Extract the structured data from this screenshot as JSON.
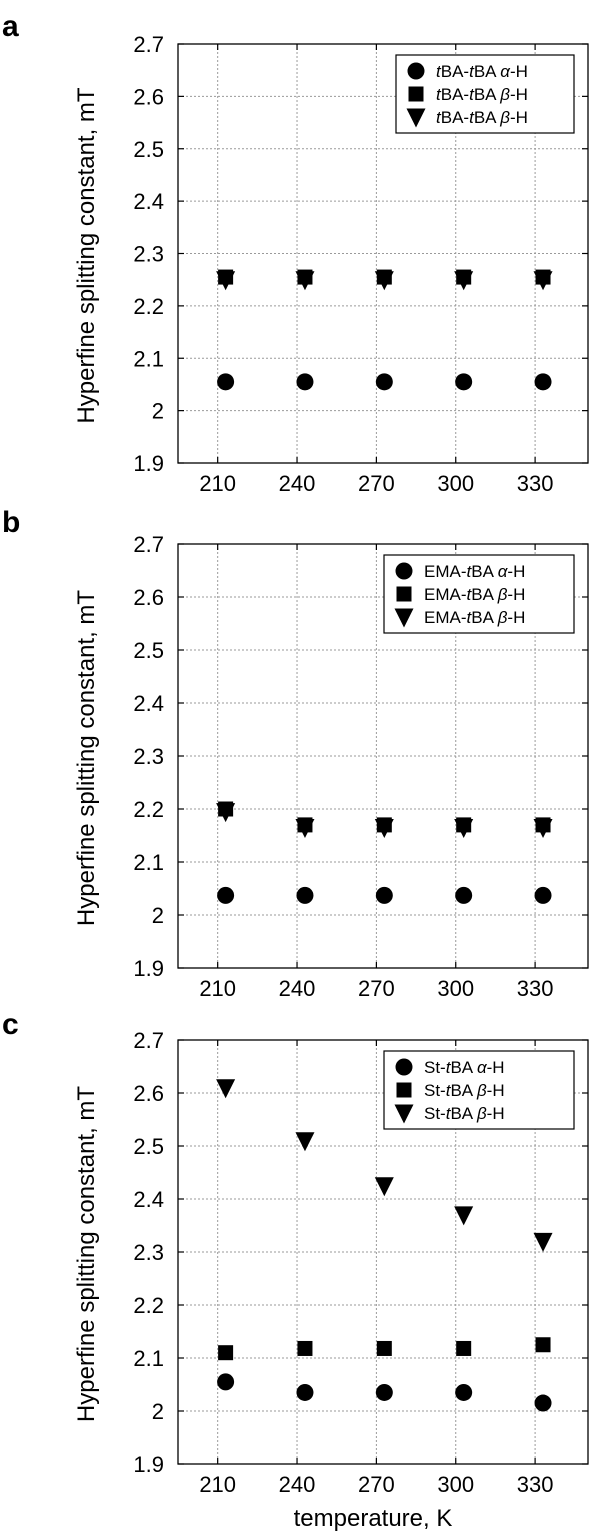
{
  "figure": {
    "x_label": "temperature, K"
  },
  "chart_data": [
    {
      "type": "scatter",
      "panel": "a",
      "title": "",
      "ylabel": "Hyperfine splitting constant, mT",
      "xlabel": "",
      "x": [
        213,
        243,
        273,
        303,
        333
      ],
      "xticks": [
        210,
        240,
        270,
        300,
        330
      ],
      "xlim": [
        195,
        350
      ],
      "yticks": [
        "1.9",
        "2",
        "2.1",
        "2.2",
        "2.3",
        "2.4",
        "2.5",
        "2.6",
        "2.7"
      ],
      "ylim": [
        1.9,
        2.7
      ],
      "grid": true,
      "legend_position": "top-right",
      "series": [
        {
          "name": "tBA-tBA α-H",
          "label_parts": [
            {
              "t": "t",
              "it": true
            },
            {
              "t": "BA-"
            },
            {
              "t": "t",
              "it": true
            },
            {
              "t": "BA "
            },
            {
              "t": "α",
              "it": true
            },
            {
              "t": "-H"
            }
          ],
          "marker": "circle",
          "values": [
            2.055,
            2.055,
            2.055,
            2.055,
            2.055
          ]
        },
        {
          "name": "tBA-tBA β-H",
          "label_parts": [
            {
              "t": "t",
              "it": true
            },
            {
              "t": "BA-"
            },
            {
              "t": "t",
              "it": true
            },
            {
              "t": "BA "
            },
            {
              "t": "β",
              "it": true
            },
            {
              "t": "-H"
            }
          ],
          "marker": "square",
          "values": [
            2.255,
            2.255,
            2.255,
            2.255,
            2.255
          ]
        },
        {
          "name": "tBA-tBA β-H",
          "label_parts": [
            {
              "t": "t",
              "it": true
            },
            {
              "t": "BA-"
            },
            {
              "t": "t",
              "it": true
            },
            {
              "t": "BA "
            },
            {
              "t": "β",
              "it": true
            },
            {
              "t": "-H"
            }
          ],
          "marker": "triangle-down",
          "values": [
            2.25,
            2.25,
            2.25,
            2.25,
            2.25
          ]
        }
      ]
    },
    {
      "type": "scatter",
      "panel": "b",
      "title": "",
      "ylabel": "Hyperfine splitting constant, mT",
      "xlabel": "",
      "x": [
        213,
        243,
        273,
        303,
        333
      ],
      "xticks": [
        210,
        240,
        270,
        300,
        330
      ],
      "xlim": [
        195,
        350
      ],
      "yticks": [
        "1.9",
        "2",
        "2.1",
        "2.2",
        "2.3",
        "2.4",
        "2.5",
        "2.6",
        "2.7"
      ],
      "ylim": [
        1.9,
        2.7
      ],
      "grid": true,
      "legend_position": "top-right",
      "series": [
        {
          "name": "EMA-tBA α-H",
          "label_parts": [
            {
              "t": "EMA-"
            },
            {
              "t": "t",
              "it": true
            },
            {
              "t": "BA "
            },
            {
              "t": "α",
              "it": true
            },
            {
              "t": "-H"
            }
          ],
          "marker": "circle",
          "values": [
            2.037,
            2.037,
            2.037,
            2.037,
            2.037
          ]
        },
        {
          "name": "EMA-tBA β-H",
          "label_parts": [
            {
              "t": "EMA-"
            },
            {
              "t": "t",
              "it": true
            },
            {
              "t": "BA "
            },
            {
              "t": "β",
              "it": true
            },
            {
              "t": "-H"
            }
          ],
          "marker": "square",
          "values": [
            2.2,
            2.17,
            2.17,
            2.17,
            2.17
          ]
        },
        {
          "name": "EMA-tBA β-H",
          "label_parts": [
            {
              "t": "EMA-"
            },
            {
              "t": "t",
              "it": true
            },
            {
              "t": "BA "
            },
            {
              "t": "β",
              "it": true
            },
            {
              "t": "-H"
            }
          ],
          "marker": "triangle-down",
          "values": [
            2.195,
            2.165,
            2.165,
            2.165,
            2.165
          ]
        }
      ]
    },
    {
      "type": "scatter",
      "panel": "c",
      "title": "",
      "ylabel": "Hyperfine splitting constant, mT",
      "xlabel": "temperature, K",
      "x": [
        213,
        243,
        273,
        303,
        333
      ],
      "xticks": [
        210,
        240,
        270,
        300,
        330
      ],
      "xlim": [
        195,
        350
      ],
      "yticks": [
        "1.9",
        "2",
        "2.1",
        "2.2",
        "2.3",
        "2.4",
        "2.5",
        "2.6",
        "2.7"
      ],
      "ylim": [
        1.9,
        2.7
      ],
      "grid": true,
      "legend_position": "top-right",
      "series": [
        {
          "name": "St-tBA α-H",
          "label_parts": [
            {
              "t": "St-"
            },
            {
              "t": "t",
              "it": true
            },
            {
              "t": "BA "
            },
            {
              "t": "α",
              "it": true
            },
            {
              "t": "-H"
            }
          ],
          "marker": "circle",
          "values": [
            2.055,
            2.035,
            2.035,
            2.035,
            2.015
          ]
        },
        {
          "name": "St-tBA β-H",
          "label_parts": [
            {
              "t": "St-"
            },
            {
              "t": "t",
              "it": true
            },
            {
              "t": "BA "
            },
            {
              "t": "β",
              "it": true
            },
            {
              "t": "-H"
            }
          ],
          "marker": "square",
          "values": [
            2.11,
            2.118,
            2.118,
            2.118,
            2.125
          ]
        },
        {
          "name": "St-tBA β-H",
          "label_parts": [
            {
              "t": "St-"
            },
            {
              "t": "t",
              "it": true
            },
            {
              "t": "BA "
            },
            {
              "t": "β",
              "it": true
            },
            {
              "t": "-H"
            }
          ],
          "marker": "triangle-down",
          "values": [
            2.61,
            2.51,
            2.425,
            2.37,
            2.32
          ]
        }
      ]
    }
  ]
}
